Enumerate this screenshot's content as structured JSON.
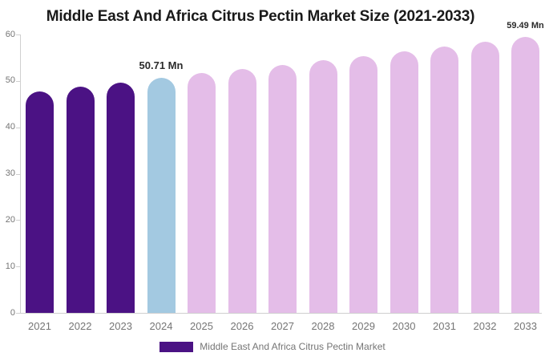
{
  "chart_data": {
    "type": "bar",
    "title": "Middle East And Africa Citrus Pectin Market Size (2021-2033)",
    "categories": [
      "2021",
      "2022",
      "2023",
      "2024",
      "2025",
      "2026",
      "2027",
      "2028",
      "2029",
      "2030",
      "2031",
      "2032",
      "2033"
    ],
    "values": [
      47.8,
      48.7,
      49.7,
      50.71,
      51.62,
      52.54,
      53.48,
      54.44,
      55.41,
      56.4,
      57.41,
      58.44,
      59.49
    ],
    "unit": "Mn",
    "bar_roles": [
      "historical",
      "historical",
      "historical",
      "current",
      "forecast",
      "forecast",
      "forecast",
      "forecast",
      "forecast",
      "forecast",
      "forecast",
      "forecast",
      "forecast"
    ],
    "colors": {
      "historical": "#4B1284",
      "current": "#A3C9E1",
      "forecast": "#E4BDE8",
      "axis_line": "#cfcfcf",
      "axis_text": "#757575",
      "title_text": "#1a1a1a",
      "annotation_text": "#2b2b2b"
    },
    "xlabel": "",
    "ylabel": "",
    "ylim": [
      0,
      60
    ],
    "yticks": [
      0,
      10,
      20,
      30,
      40,
      50,
      60
    ],
    "grid": false,
    "legend_position": "bottom",
    "legend_label": "Middle East And Africa Citrus Pectin Market",
    "data_labels": [
      {
        "category": "2024",
        "text": "50.71 Mn"
      },
      {
        "category": "2033",
        "text": "59.49 Mn"
      }
    ]
  }
}
